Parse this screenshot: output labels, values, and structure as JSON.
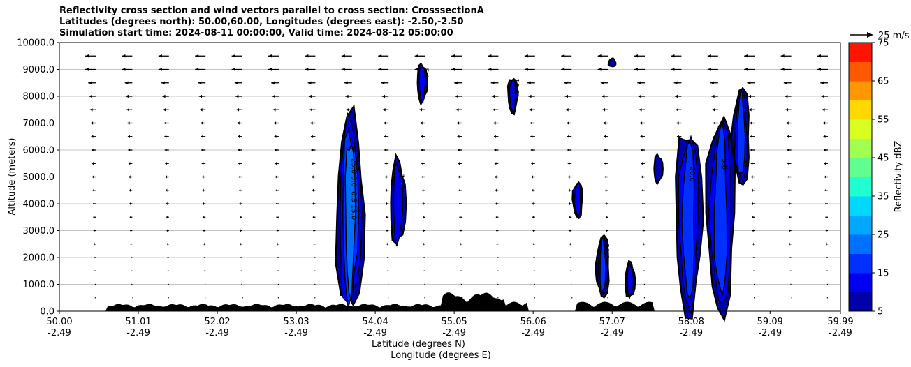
{
  "chart_data": {
    "type": "heatmap",
    "title_lines": [
      "Reflectivity cross section and wind vectors parallel to cross section: CrosssectionA",
      "Latitudes (degrees north): 50.00,60.00, Longitudes (degrees east): -2.50,-2.50",
      "Simulation start time: 2024-08-11 00:00:00, Valid time: 2024-08-12 05:00:00"
    ],
    "ylabel": "Altitude (meters)",
    "xlabel_lines": [
      "Latitude (degrees N)",
      "Longitude (degrees E)"
    ],
    "xlim": [
      50.0,
      59.99
    ],
    "ylim": [
      0,
      10000
    ],
    "x_ticks": [
      {
        "lat": "50.00",
        "lon": "-2.49",
        "value": 50.0
      },
      {
        "lat": "51.01",
        "lon": "-2.49",
        "value": 51.01
      },
      {
        "lat": "52.02",
        "lon": "-2.49",
        "value": 52.02
      },
      {
        "lat": "53.03",
        "lon": "-2.49",
        "value": 53.03
      },
      {
        "lat": "54.04",
        "lon": "-2.49",
        "value": 54.04
      },
      {
        "lat": "55.05",
        "lon": "-2.49",
        "value": 55.05
      },
      {
        "lat": "56.06",
        "lon": "-2.49",
        "value": 56.06
      },
      {
        "lat": "57.07",
        "lon": "-2.49",
        "value": 57.07
      },
      {
        "lat": "58.08",
        "lon": "-2.49",
        "value": 58.08
      },
      {
        "lat": "59.09",
        "lon": "-2.49",
        "value": 59.09
      },
      {
        "lat": "59.99",
        "lon": "-2.49",
        "value": 59.99
      }
    ],
    "y_ticks": [
      {
        "label": "0.0",
        "value": 0
      },
      {
        "label": "1000.0",
        "value": 1000
      },
      {
        "label": "2000.0",
        "value": 2000
      },
      {
        "label": "3000.0",
        "value": 3000
      },
      {
        "label": "4000.0",
        "value": 4000
      },
      {
        "label": "5000.0",
        "value": 5000
      },
      {
        "label": "6000.0",
        "value": 6000
      },
      {
        "label": "7000.0",
        "value": 7000
      },
      {
        "label": "8000.0",
        "value": 8000
      },
      {
        "label": "9000.0",
        "value": 9000
      },
      {
        "label": "10000.0",
        "value": 10000
      }
    ],
    "grid": "horizontal",
    "colorbar": {
      "label": "Reflectivity dBZ",
      "levels": [
        5,
        10,
        15,
        20,
        25,
        30,
        35,
        40,
        45,
        50,
        55,
        60,
        65,
        70,
        75
      ],
      "tick_labels": [
        "5",
        "15",
        "25",
        "35",
        "45",
        "55",
        "65",
        "75"
      ],
      "colors": [
        "#0000a8",
        "#0000f0",
        "#0030ff",
        "#0070ff",
        "#00a8ff",
        "#00d8ff",
        "#20ffd0",
        "#60ff90",
        "#a0ff50",
        "#d8ff20",
        "#ffd800",
        "#ff9800",
        "#ff5800",
        "#ff1400",
        "#a80000"
      ]
    },
    "wind_key": "25 m/s",
    "cells": [
      {
        "lat": 53.72,
        "bottom": 0,
        "top": 7200,
        "max_dbz": 25,
        "contour_labels": [
          "25.0",
          "5.0",
          "0.5",
          "15.0"
        ]
      },
      {
        "lat": 54.33,
        "bottom": 2500,
        "top": 5600,
        "max_dbz": 15,
        "contour_labels": [
          "10.0"
        ]
      },
      {
        "lat": 54.64,
        "bottom": 7800,
        "top": 9200,
        "max_dbz": 15,
        "contour_labels": [
          "5.0"
        ]
      },
      {
        "lat": 55.8,
        "bottom": 7400,
        "top": 8700,
        "max_dbz": 15,
        "contour_labels": [
          "10.0"
        ]
      },
      {
        "lat": 56.63,
        "bottom": 3500,
        "top": 4800,
        "max_dbz": 15,
        "contour_labels": []
      },
      {
        "lat": 56.95,
        "bottom": 500,
        "top": 2800,
        "max_dbz": 20,
        "contour_labels": [
          "20.0"
        ]
      },
      {
        "lat": 57.07,
        "bottom": 9100,
        "top": 9400,
        "max_dbz": 10,
        "contour_labels": []
      },
      {
        "lat": 57.3,
        "bottom": 500,
        "top": 1800,
        "max_dbz": 15,
        "contour_labels": []
      },
      {
        "lat": 57.66,
        "bottom": 4800,
        "top": 5800,
        "max_dbz": 10,
        "contour_labels": []
      },
      {
        "lat": 58.05,
        "bottom": 0,
        "top": 6800,
        "max_dbz": 20,
        "contour_labels": [
          "20.0"
        ]
      },
      {
        "lat": 58.46,
        "bottom": 0,
        "top": 7300,
        "max_dbz": 20,
        "contour_labels": [
          "5.0"
        ]
      },
      {
        "lat": 58.72,
        "bottom": 4700,
        "top": 8300,
        "max_dbz": 20,
        "contour_labels": [
          "20.0"
        ]
      }
    ]
  }
}
